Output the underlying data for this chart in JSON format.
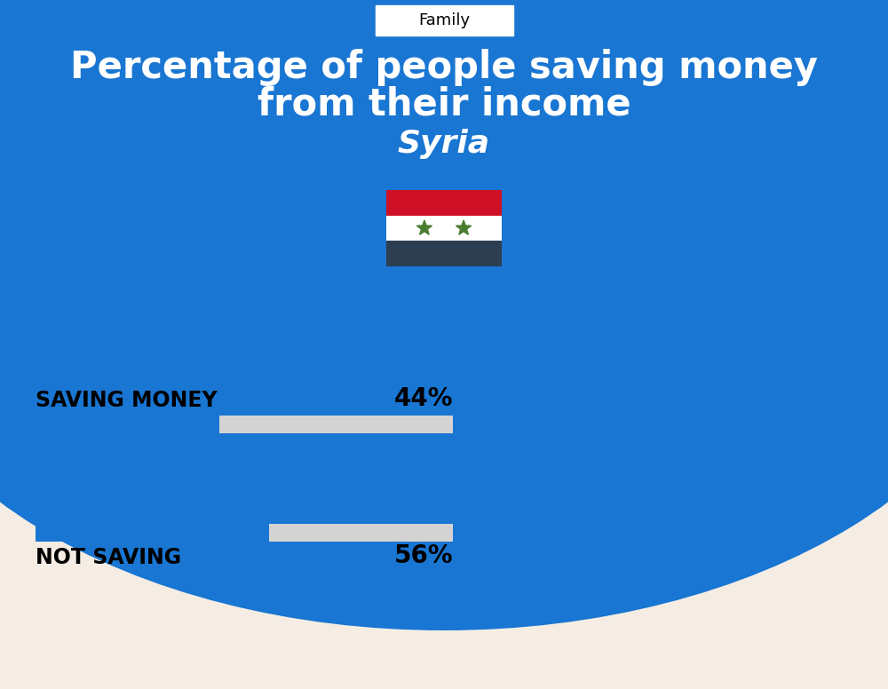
{
  "title_line1": "Percentage of people saving money",
  "title_line2": "from their income",
  "country": "Syria",
  "tab_label": "Family",
  "bg_top_color": "#1976D2",
  "bg_bottom_color": "#F5EDE3",
  "bar_color": "#1976D2",
  "bar_bg_color": "#D3D3D3",
  "saving_label": "SAVING MONEY",
  "saving_value": 44,
  "saving_pct_label": "44%",
  "not_saving_label": "NOT SAVING",
  "not_saving_value": 56,
  "not_saving_pct_label": "56%",
  "title_fontsize": 30,
  "country_fontsize": 26,
  "label_fontsize": 17,
  "pct_fontsize": 20,
  "tab_fontsize": 13,
  "fig_width": 10.0,
  "fig_height": 7.76,
  "flag_red": "#CE1126",
  "flag_white": "#FFFFFF",
  "flag_black": "#2C3E50",
  "flag_star": "#4A7C30"
}
